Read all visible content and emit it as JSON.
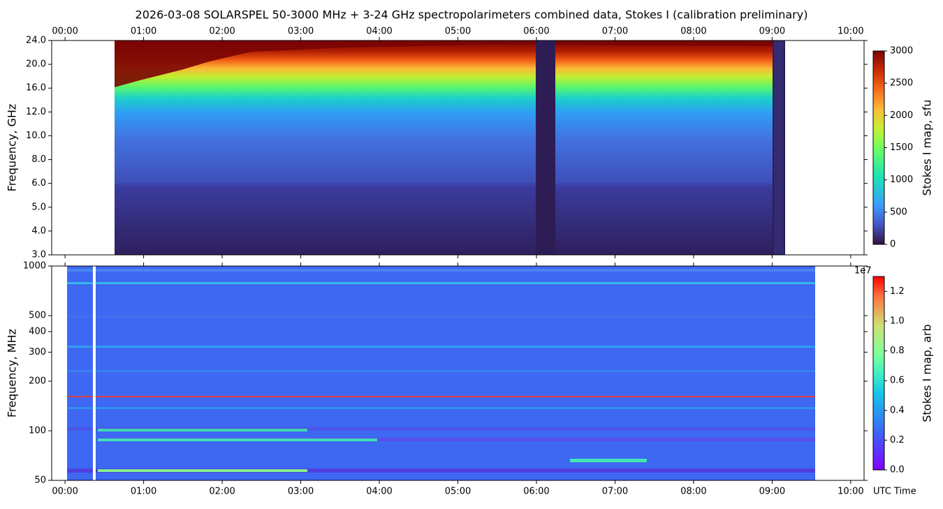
{
  "chart_data": [
    {
      "type": "heatmap",
      "title": "2026-03-08  SOLARSPEL  50-3000 MHz  +  3-24 GHz  spectropolarimeters combined data,  Stokes I  (calibration preliminary)",
      "ylabel": "Frequency, GHz",
      "xaxis_position": "top",
      "xlim": [
        -0.17,
        10.17
      ],
      "xticks": [
        {
          "value": 0,
          "label": "00:00"
        },
        {
          "value": 1,
          "label": "01:00"
        },
        {
          "value": 2,
          "label": "02:00"
        },
        {
          "value": 3,
          "label": "03:00"
        },
        {
          "value": 4,
          "label": "04:00"
        },
        {
          "value": 5,
          "label": "05:00"
        },
        {
          "value": 6,
          "label": "06:00"
        },
        {
          "value": 7,
          "label": "07:00"
        },
        {
          "value": 8,
          "label": "08:00"
        },
        {
          "value": 9,
          "label": "09:00"
        },
        {
          "value": 10,
          "label": "10:00"
        }
      ],
      "yscale": "tick-index",
      "ylim": [
        3,
        24
      ],
      "yticks": [
        {
          "value": 3,
          "label": "3.0"
        },
        {
          "value": 4,
          "label": "4.0"
        },
        {
          "value": 5,
          "label": "5.0"
        },
        {
          "value": 6,
          "label": "6.0"
        },
        {
          "value": 8,
          "label": "8.0"
        },
        {
          "value": 10,
          "label": "10.0"
        },
        {
          "value": 12,
          "label": "12.0"
        },
        {
          "value": 16,
          "label": "16.0"
        },
        {
          "value": 20,
          "label": "20.0"
        },
        {
          "value": 24,
          "label": "24.0"
        }
      ],
      "colormap": "turbo",
      "colorbar": {
        "label": "Stokes I map, sfu",
        "clim": [
          0,
          3000
        ],
        "ticks": [
          0,
          500,
          1000,
          1500,
          2000,
          2500,
          3000
        ]
      }
    },
    {
      "type": "heatmap",
      "ylabel": "Frequency, MHz",
      "xlabel": "UTC Time",
      "xaxis_position": "bottom",
      "xlim": [
        -0.17,
        10.17
      ],
      "xticks": [
        {
          "value": 0,
          "label": "00:00"
        },
        {
          "value": 1,
          "label": "01:00"
        },
        {
          "value": 2,
          "label": "02:00"
        },
        {
          "value": 3,
          "label": "03:00"
        },
        {
          "value": 4,
          "label": "04:00"
        },
        {
          "value": 5,
          "label": "05:00"
        },
        {
          "value": 6,
          "label": "06:00"
        },
        {
          "value": 7,
          "label": "07:00"
        },
        {
          "value": 8,
          "label": "08:00"
        },
        {
          "value": 9,
          "label": "09:00"
        },
        {
          "value": 10,
          "label": "10:00"
        }
      ],
      "yscale": "log",
      "ylim": [
        50,
        1000
      ],
      "yticks": [
        50,
        100,
        200,
        300,
        400,
        500,
        1000
      ],
      "colormap": "rainbow",
      "colorbar": {
        "label": "Stokes I map, arb",
        "offset_label": "1e7",
        "clim": [
          0,
          13000000
        ],
        "ticks": [
          {
            "value": 0,
            "label": "0.0"
          },
          {
            "value": 2000000,
            "label": "0.2"
          },
          {
            "value": 4000000,
            "label": "0.4"
          },
          {
            "value": 6000000,
            "label": "0.6"
          },
          {
            "value": 8000000,
            "label": "0.8"
          },
          {
            "value": 10000000,
            "label": "1.0"
          },
          {
            "value": 12000000,
            "label": "1.2"
          }
        ]
      }
    }
  ]
}
